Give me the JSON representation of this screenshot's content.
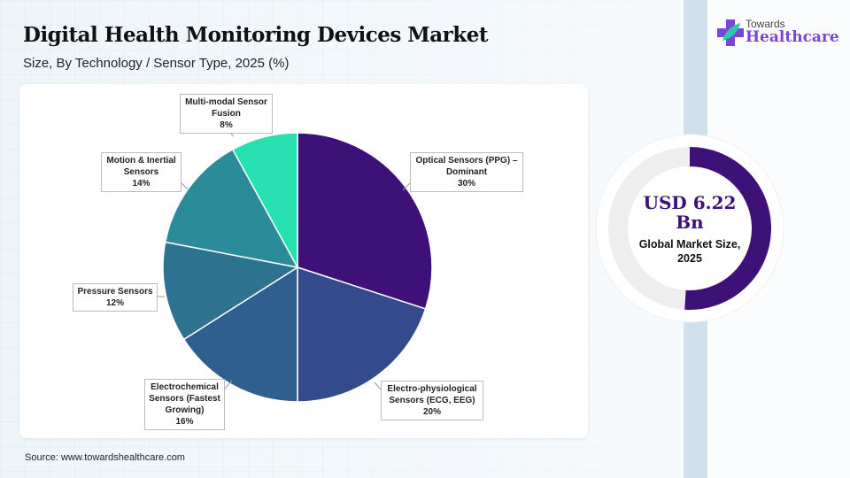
{
  "header": {
    "title": "Digital Health Monitoring Devices Market",
    "subtitle": "Size, By Technology / Sensor Type, 2025 (%)"
  },
  "logo": {
    "line1": "Towards",
    "line2": "Healthcare"
  },
  "kpi": {
    "value": "USD 6.22",
    "unit": "Bn",
    "label": "Global Market Size,",
    "year": "2025",
    "fill_fraction": 0.5,
    "color": "#3d1178"
  },
  "source": "Source: www.towardshealthcare.com",
  "chart_data": {
    "type": "pie",
    "title": "Digital Health Monitoring Devices Market",
    "categories": [
      "Optical Sensors (PPG) – Dominant",
      "Electro-physiological Sensors (ECG, EEG)",
      "Electrochemical Sensors (Fastest Growing)",
      "Pressure Sensors",
      "Motion & Inertial Sensors",
      "Multi-modal Sensor Fusion"
    ],
    "values": [
      30,
      20,
      16,
      12,
      14,
      8
    ],
    "labels": [
      {
        "name": "Optical Sensors (PPG) –",
        "name2": "Dominant",
        "pct": "30%"
      },
      {
        "name": "Electro-physiological",
        "name2": "Sensors (ECG, EEG)",
        "pct": "20%"
      },
      {
        "name": "Electrochemical",
        "name2": "Sensors (Fastest",
        "name3": "Growing)",
        "pct": "16%"
      },
      {
        "name": "Pressure Sensors",
        "pct": "12%"
      },
      {
        "name": "Motion & Inertial",
        "name2": "Sensors",
        "pct": "14%"
      },
      {
        "name": "Multi-modal Sensor",
        "name2": "Fusion",
        "pct": "8%"
      }
    ],
    "colors": [
      "#3d1178",
      "#354a8a",
      "#2f5f8e",
      "#2d7390",
      "#2b8b99",
      "#27e0b0"
    ]
  }
}
